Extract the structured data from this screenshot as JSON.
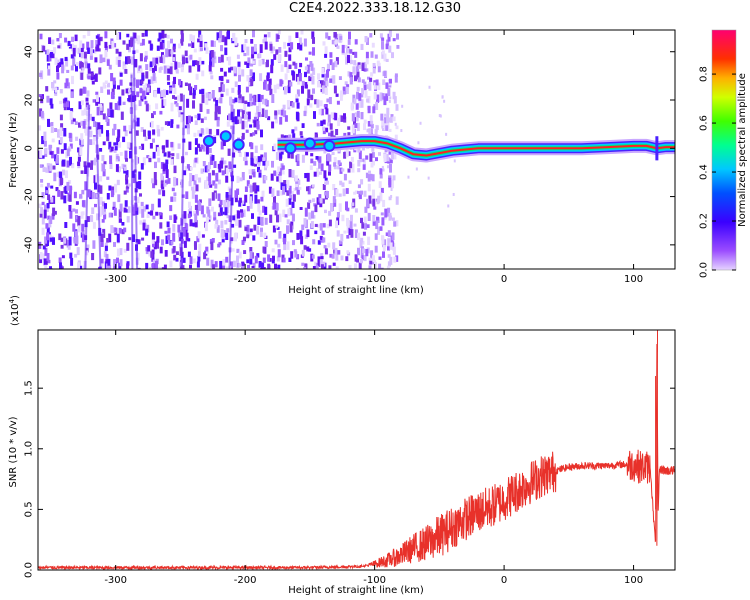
{
  "title": "C2E4.2022.333.18.12.G30",
  "colors": {
    "snr_line": "#e8312a",
    "speckle": "#7a33e6",
    "track_core": "#ff2020",
    "track_mid": "#00e676",
    "colorbar_stops": [
      "#c8a0ff",
      "#6a00ff",
      "#0000ff",
      "#00c8ff",
      "#00ff7a",
      "#7aff00",
      "#ffff00",
      "#ff8000",
      "#ff0000",
      "#ff0080"
    ]
  },
  "chart_data": [
    {
      "type": "heatmap",
      "title": "C2E4.2022.333.18.12.G30",
      "xlabel": "Height of straight line (km)",
      "ylabel": "Frequency (Hz)",
      "xlim": [
        -360,
        132
      ],
      "ylim": [
        -50,
        49
      ],
      "xticks": [
        "-300",
        "-200",
        "-100",
        "0",
        "100"
      ],
      "yticks": [
        "-40",
        "-20",
        "0",
        "20",
        "40"
      ],
      "colorbar": {
        "label": "Normalized spectral amplitude",
        "range": [
          0.0,
          0.98
        ],
        "ticks": [
          "0.0",
          "0.2",
          "0.4",
          "0.6",
          "0.8"
        ]
      },
      "noise_region_x": [
        -360,
        -95
      ],
      "track": {
        "x": [
          -175,
          -150,
          -130,
          -110,
          -100,
          -90,
          -80,
          -70,
          -60,
          -50,
          -40,
          -30,
          -20,
          -10,
          0,
          20,
          40,
          60,
          80,
          100,
          110,
          118,
          125,
          132
        ],
        "y": [
          1.5,
          1.5,
          2.0,
          3.0,
          3.0,
          2.0,
          0.0,
          -2.5,
          -3.0,
          -2.0,
          -1.0,
          -0.5,
          0.0,
          0.0,
          0.0,
          0.0,
          0.0,
          0.0,
          0.5,
          1.0,
          1.0,
          0.0,
          0.5,
          0.5
        ]
      }
    },
    {
      "type": "line",
      "xlabel": "Height of straight line (km)",
      "ylabel": "SNR (10 * v/v)",
      "yscale_label": "(x10",
      "yscale_exp": "4",
      "yscale_suffix": ")",
      "xlim": [
        -360,
        132
      ],
      "ylim": [
        0.0,
        1.98
      ],
      "xticks": [
        "-300",
        "-200",
        "-100",
        "0",
        "100"
      ],
      "yticks": [
        "0.0",
        "0.5",
        "1.0",
        "1.5"
      ],
      "series": [
        {
          "x": [
            -360,
            -300,
            -250,
            -200,
            -150,
            -110,
            -100,
            -90,
            -80,
            -70,
            -60,
            -50,
            -40,
            -30,
            -20,
            -10,
            0,
            10,
            20,
            30,
            40,
            50,
            60,
            70,
            80,
            90,
            100,
            105,
            110,
            113,
            115,
            117,
            118,
            119,
            120,
            122,
            125,
            132
          ],
          "y": [
            0.02,
            0.02,
            0.02,
            0.02,
            0.02,
            0.03,
            0.05,
            0.08,
            0.12,
            0.18,
            0.22,
            0.28,
            0.35,
            0.42,
            0.48,
            0.52,
            0.58,
            0.65,
            0.72,
            0.78,
            0.82,
            0.85,
            0.86,
            0.86,
            0.86,
            0.87,
            0.87,
            0.85,
            0.85,
            0.84,
            0.5,
            0.2,
            1.85,
            0.45,
            0.82,
            0.83,
            0.82,
            0.82
          ]
        }
      ]
    }
  ]
}
